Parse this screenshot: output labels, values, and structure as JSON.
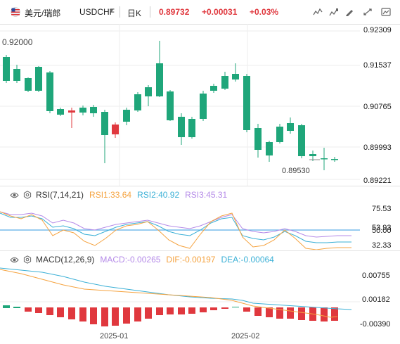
{
  "header": {
    "pair_name": "美元/瑞郎",
    "symbol": "USDCHF",
    "period": "日K",
    "last_price": "0.89732",
    "change": "+0.00031",
    "change_pct": "+0.03%",
    "icons": [
      "indicator-icon",
      "bar-style-icon",
      "draw-icon",
      "compare-icon",
      "fullscreen-icon",
      "screenshot-icon"
    ]
  },
  "main": {
    "y_ticks": [
      "0.92309",
      "0.91537",
      "0.90765",
      "0.89993",
      "0.89221"
    ],
    "high_label": "0.92000",
    "low_label": "0.89530"
  },
  "rsi": {
    "title": "RSI(7,14,21)",
    "rsi1": "RSI1:33.64",
    "rsi2": "RSI2:40.92",
    "rsi3": "RSI3:45.31",
    "y_ticks": [
      "53.93",
      "50.00",
      "32.33"
    ],
    "top_label": "75.53",
    "colors": {
      "rsi1": "#f5a340",
      "rsi2": "#3bb0d6",
      "rsi3": "#b58be8"
    }
  },
  "macd": {
    "title": "MACD(12,26,9)",
    "macd": "MACD:-0.00265",
    "dif": "DIF:-0.00197",
    "dea": "DEA:-0.00064",
    "y_ticks": [
      "0.00755",
      "0.00182",
      "-0.00390"
    ],
    "colors": {
      "macd": "#b58be8",
      "dif": "#f5a340",
      "dea": "#3bb0d6"
    }
  },
  "x_axis": [
    "2025-01",
    "2025-02"
  ],
  "colors": {
    "up": "#e0383e",
    "down": "#1fa67a",
    "accent": "#e0383e"
  }
}
